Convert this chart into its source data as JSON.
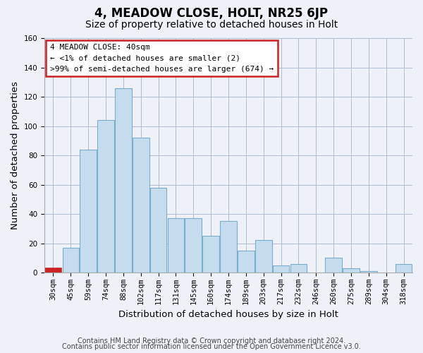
{
  "title": "4, MEADOW CLOSE, HOLT, NR25 6JP",
  "subtitle": "Size of property relative to detached houses in Holt",
  "xlabel": "Distribution of detached houses by size in Holt",
  "ylabel": "Number of detached properties",
  "bin_labels": [
    "30sqm",
    "45sqm",
    "59sqm",
    "74sqm",
    "88sqm",
    "102sqm",
    "117sqm",
    "131sqm",
    "145sqm",
    "160sqm",
    "174sqm",
    "189sqm",
    "203sqm",
    "217sqm",
    "232sqm",
    "246sqm",
    "260sqm",
    "275sqm",
    "289sqm",
    "304sqm",
    "318sqm"
  ],
  "bar_heights": [
    3,
    17,
    84,
    104,
    126,
    92,
    58,
    37,
    37,
    25,
    35,
    15,
    22,
    5,
    6,
    0,
    10,
    3,
    1,
    0,
    6
  ],
  "bar_color": "#c5dcef",
  "bar_edge_color": "#7aadcc",
  "highlight_bar_index": 0,
  "highlight_bar_color": "#cc2222",
  "highlight_bar_edge_color": "#cc2222",
  "ylim": [
    0,
    160
  ],
  "yticks": [
    0,
    20,
    40,
    60,
    80,
    100,
    120,
    140,
    160
  ],
  "annotation_title": "4 MEADOW CLOSE: 40sqm",
  "annotation_line1": "← <1% of detached houses are smaller (2)",
  "annotation_line2": ">99% of semi-detached houses are larger (674) →",
  "annotation_box_color": "#ffffff",
  "annotation_box_edge_color": "#cc2222",
  "footer_line1": "Contains HM Land Registry data © Crown copyright and database right 2024.",
  "footer_line2": "Contains public sector information licensed under the Open Government Licence v3.0.",
  "background_color": "#eef2f8",
  "plot_bg_color": "#eef2f8",
  "grid_color": "#b0bcd0",
  "title_fontsize": 12,
  "subtitle_fontsize": 10,
  "axis_label_fontsize": 9.5,
  "tick_fontsize": 7.5,
  "footer_fontsize": 7
}
